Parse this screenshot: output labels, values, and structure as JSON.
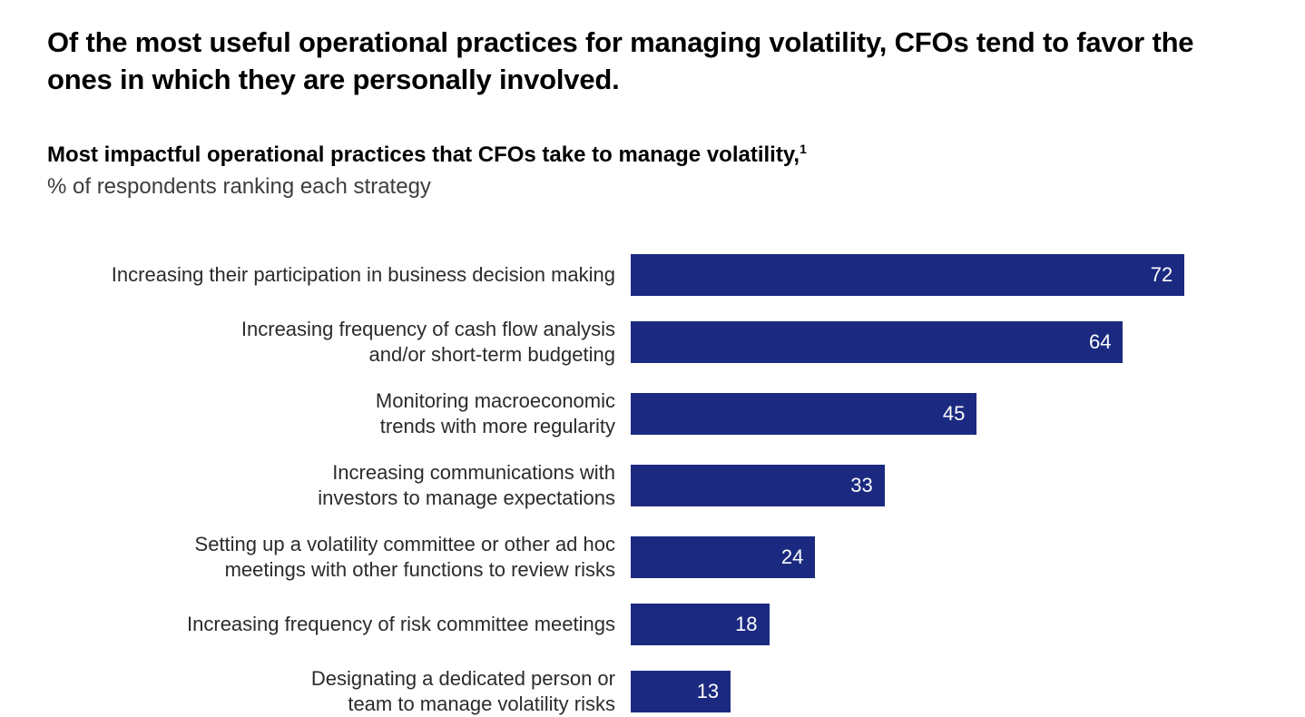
{
  "header": {
    "title": "Of the most useful operational practices for managing volatility, CFOs tend to favor the ones in which they are personally involved.",
    "subtitle_bold": "Most impactful operational practices that CFOs take to manage volatility,",
    "subtitle_superscript": "1",
    "subtitle_note": "% of respondents ranking each strategy"
  },
  "chart_data": {
    "type": "bar",
    "orientation": "horizontal",
    "title": "Most impactful operational practices that CFOs take to manage volatility",
    "unit": "% of respondents ranking each strategy",
    "categories": [
      "Increasing their participation in business decision making",
      "Increasing frequency of cash flow analysis and/or short-term budgeting",
      "Monitoring macroeconomic trends with more regularity",
      "Increasing communications with investors to manage expectations",
      "Setting up a volatility committee or other ad hoc meetings with other functions to review risks",
      "Increasing frequency of risk committee meetings",
      "Designating a dedicated person or team to manage volatility risks"
    ],
    "category_lines": [
      [
        "Increasing their participation in business decision making"
      ],
      [
        "Increasing frequency of cash flow analysis",
        "and/or short-term budgeting"
      ],
      [
        "Monitoring macroeconomic",
        "trends with more regularity"
      ],
      [
        "Increasing communications with",
        "investors to manage expectations"
      ],
      [
        "Setting up a volatility committee or other ad hoc",
        "meetings with other functions to review risks"
      ],
      [
        "Increasing frequency of risk committee meetings"
      ],
      [
        "Designating a dedicated person or",
        "team to manage volatility risks"
      ]
    ],
    "values": [
      72,
      64,
      45,
      33,
      24,
      18,
      13
    ],
    "value_labels_position": "inside-end",
    "bar_color": "#1b2a80",
    "value_label_color": "#ffffff",
    "axis_visible": false,
    "grid": false,
    "legend": "none",
    "xlim": [
      0,
      82
    ]
  }
}
